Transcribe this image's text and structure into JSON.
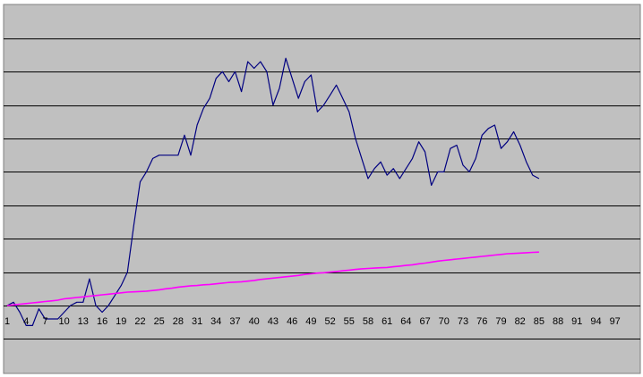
{
  "chart_data": {
    "type": "line",
    "title": "",
    "xlabel": "",
    "ylabel": "",
    "x_tick_labels": [
      "1",
      "4",
      "7",
      "10",
      "13",
      "16",
      "19",
      "22",
      "25",
      "28",
      "31",
      "34",
      "37",
      "40",
      "43",
      "46",
      "49",
      "52",
      "55",
      "58",
      "61",
      "64",
      "67",
      "70",
      "73",
      "76",
      "79",
      "82",
      "85",
      "88",
      "91",
      "94",
      "97"
    ],
    "xlim": [
      1,
      98
    ],
    "ylim": [
      -2,
      8.5
    ],
    "gridlines_y": [
      -1,
      0,
      1,
      2,
      3,
      4,
      5,
      6,
      7,
      8
    ],
    "grid": true,
    "plot_background": "#c0c0c0",
    "series": [
      {
        "color": "#000080",
        "values": [
          0.0,
          0.1,
          -0.2,
          -0.6,
          -0.6,
          -0.1,
          -0.4,
          -0.4,
          -0.4,
          -0.2,
          0.0,
          0.1,
          0.1,
          0.8,
          0.0,
          -0.2,
          0.0,
          0.3,
          0.6,
          1.0,
          2.4,
          3.7,
          4.0,
          4.4,
          4.5,
          4.5,
          4.5,
          4.5,
          5.1,
          4.5,
          5.4,
          5.9,
          6.2,
          6.8,
          7.0,
          6.7,
          7.0,
          6.4,
          7.3,
          7.1,
          7.3,
          7.0,
          6.0,
          6.5,
          7.4,
          6.8,
          6.2,
          6.7,
          6.9,
          5.8,
          6.0,
          6.3,
          6.6,
          6.2,
          5.8,
          5.0,
          4.4,
          3.8,
          4.1,
          4.3,
          3.9,
          4.1,
          3.8,
          4.1,
          4.4,
          4.9,
          4.6,
          3.6,
          4.0,
          4.0,
          4.7,
          4.8,
          4.2,
          4.0,
          4.4,
          5.1,
          5.3,
          5.4,
          4.7,
          4.9,
          5.2,
          4.8,
          4.3,
          3.9,
          3.8
        ],
        "x_start": 1
      },
      {
        "color": "#ff00ff",
        "values": [
          0.0,
          0.02,
          0.04,
          0.06,
          0.08,
          0.1,
          0.12,
          0.14,
          0.16,
          0.2,
          0.22,
          0.24,
          0.26,
          0.28,
          0.3,
          0.32,
          0.34,
          0.36,
          0.38,
          0.4,
          0.41,
          0.42,
          0.43,
          0.45,
          0.47,
          0.5,
          0.52,
          0.55,
          0.57,
          0.59,
          0.6,
          0.62,
          0.63,
          0.65,
          0.67,
          0.69,
          0.7,
          0.71,
          0.73,
          0.75,
          0.78,
          0.8,
          0.82,
          0.84,
          0.86,
          0.88,
          0.9,
          0.93,
          0.95,
          0.97,
          0.98,
          1.0,
          1.02,
          1.04,
          1.06,
          1.08,
          1.1,
          1.11,
          1.12,
          1.13,
          1.14,
          1.16,
          1.18,
          1.2,
          1.22,
          1.25,
          1.27,
          1.3,
          1.33,
          1.35,
          1.37,
          1.39,
          1.41,
          1.43,
          1.45,
          1.47,
          1.49,
          1.51,
          1.53,
          1.55,
          1.56,
          1.57,
          1.58,
          1.59,
          1.6
        ],
        "x_start": 1
      }
    ]
  }
}
